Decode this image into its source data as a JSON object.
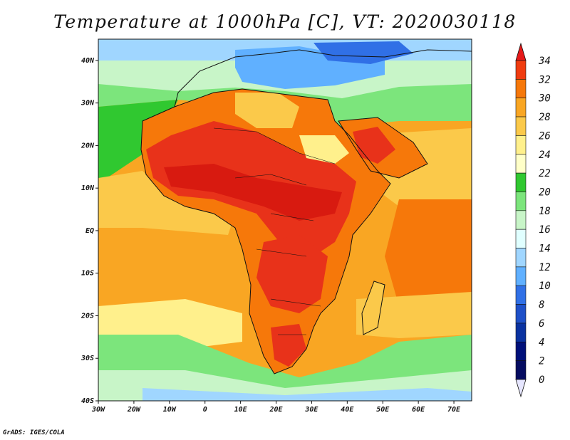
{
  "title": "Temperature at 1000hPa [C], VT: 2020030118",
  "footer": "GrADS: IGES/COLA",
  "map": {
    "projection": "latlon",
    "region": "Africa",
    "lon_range": [
      -30,
      75
    ],
    "lat_range": [
      -40,
      45
    ],
    "variable": "Temperature",
    "level": "1000hPa",
    "units": "C",
    "valid_time": "2020030118",
    "x_ticks": [
      "30W",
      "20W",
      "10W",
      "0",
      "10E",
      "20E",
      "30E",
      "40E",
      "50E",
      "60E",
      "70E"
    ],
    "y_ticks": [
      "40N",
      "30N",
      "20N",
      "10N",
      "EQ",
      "10S",
      "20S",
      "30S",
      "40S"
    ]
  },
  "colorbar": {
    "levels": [
      "34",
      "32",
      "30",
      "28",
      "26",
      "24",
      "22",
      "20",
      "18",
      "16",
      "14",
      "12",
      "10",
      "8",
      "6",
      "4",
      "2",
      "0"
    ],
    "colors": [
      "#e61919",
      "#f03c0f",
      "#f6780a",
      "#f9a623",
      "#fbc94a",
      "#fff08c",
      "#ffffc8",
      "#30c830",
      "#7ce57c",
      "#c8f5c8",
      "#e0ffff",
      "#a0d6ff",
      "#60b0ff",
      "#3070e6",
      "#1e50c8",
      "#0a32a0",
      "#00107a",
      "#050c60"
    ],
    "extend": "both"
  }
}
